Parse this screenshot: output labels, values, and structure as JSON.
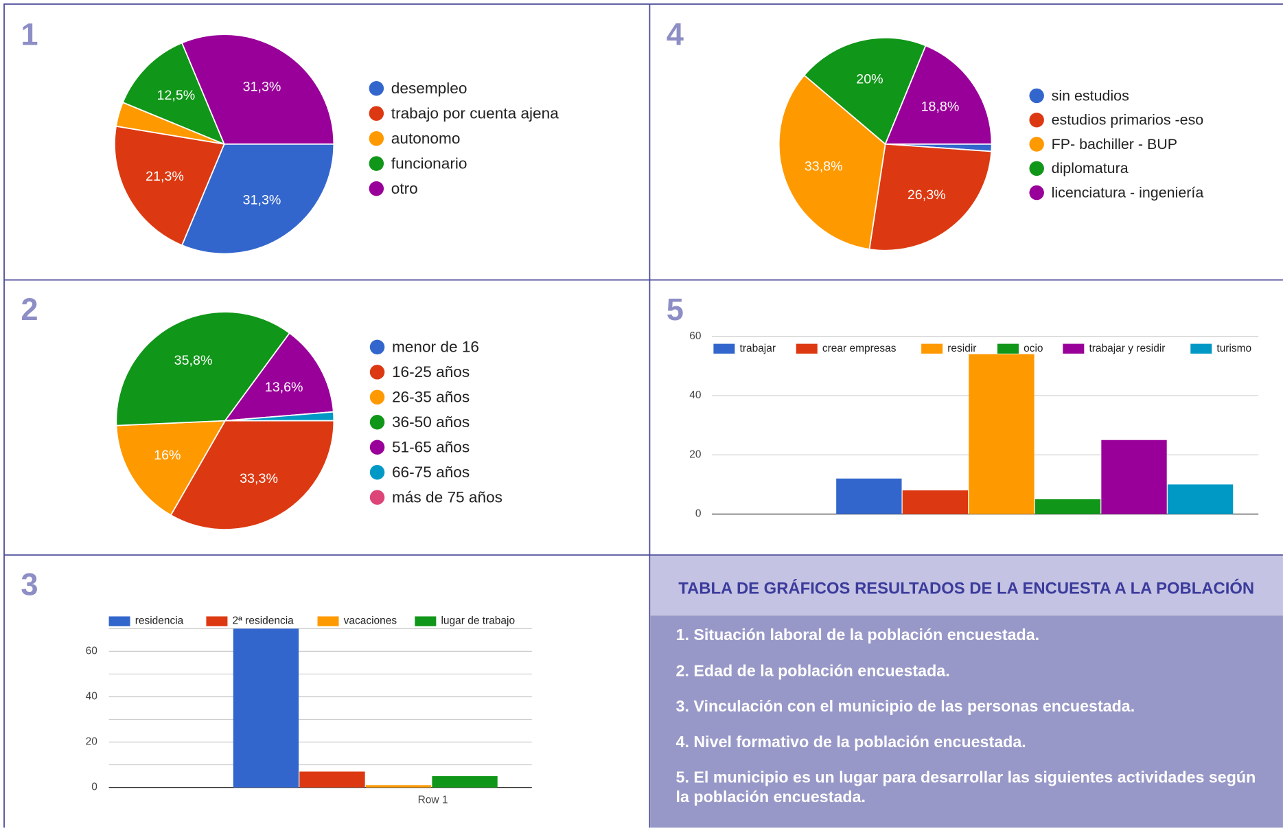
{
  "chart_data": [
    {
      "type": "pie",
      "number": "1",
      "categories": [
        "desempleo",
        "trabajo por cuenta ajena",
        "autonomo",
        "funcionario",
        "otro"
      ],
      "values": [
        31.3,
        21.3,
        3.6,
        12.5,
        31.3
      ],
      "value_labels": [
        "31,3%",
        "21,3%",
        null,
        "12,5%",
        "31,3%"
      ],
      "colors": [
        "#3366cc",
        "#dc3912",
        "#ff9900",
        "#109618",
        "#990099"
      ]
    },
    {
      "type": "pie",
      "number": "2",
      "categories": [
        "menor de 16",
        "16-25 años",
        "26-35 años",
        "36-50 años",
        "51-65 años",
        "66-75 años",
        "más de 75 años"
      ],
      "values": [
        0,
        33.3,
        16,
        35.8,
        13.6,
        1.3,
        0
      ],
      "value_labels": [
        null,
        "33,3%",
        "16%",
        "35,8%",
        "13,6%",
        null,
        null
      ],
      "colors": [
        "#3366cc",
        "#dc3912",
        "#ff9900",
        "#109618",
        "#990099",
        "#0099c6",
        "#dd4477"
      ]
    },
    {
      "type": "bar",
      "number": "3",
      "categories": [
        "Row 1"
      ],
      "series": [
        {
          "name": "residencia",
          "color": "#3366cc",
          "values": [
            70
          ]
        },
        {
          "name": "2ª residencia",
          "color": "#dc3912",
          "values": [
            7
          ]
        },
        {
          "name": "vacaciones",
          "color": "#ff9900",
          "values": [
            1
          ]
        },
        {
          "name": "lugar de trabajo",
          "color": "#109618",
          "values": [
            5
          ]
        }
      ],
      "ylim": [
        0,
        70
      ],
      "yticks": [
        0,
        20,
        40,
        60
      ],
      "minor_gridlines": [
        10,
        30,
        50,
        70
      ],
      "grid": true
    },
    {
      "type": "pie",
      "number": "4",
      "categories": [
        "sin estudios",
        "estudios primarios -eso",
        "FP- bachiller - BUP",
        "diplomatura",
        "licenciatura - ingeniería"
      ],
      "values": [
        1.1,
        26.3,
        33.8,
        20,
        18.8
      ],
      "value_labels": [
        null,
        "26,3%",
        "33,8%",
        "20%",
        "18,8%"
      ],
      "colors": [
        "#3366cc",
        "#dc3912",
        "#ff9900",
        "#109618",
        "#990099"
      ]
    },
    {
      "type": "bar",
      "number": "5",
      "categories": [
        null
      ],
      "series": [
        {
          "name": "trabajar",
          "color": "#3366cc",
          "values": [
            12
          ]
        },
        {
          "name": "crear empresas",
          "color": "#dc3912",
          "values": [
            8
          ]
        },
        {
          "name": "residir",
          "color": "#ff9900",
          "values": [
            54
          ]
        },
        {
          "name": "ocio",
          "color": "#109618",
          "values": [
            5
          ]
        },
        {
          "name": "trabajar y residir",
          "color": "#990099",
          "values": [
            25
          ]
        },
        {
          "name": "turismo",
          "color": "#0099c6",
          "values": [
            10
          ]
        }
      ],
      "ylim": [
        0,
        60
      ],
      "yticks": [
        0,
        20,
        40,
        60
      ],
      "grid": true
    }
  ],
  "panel": {
    "title": "TABLA DE GRÁFICOS RESULTADOS DE LA ENCUESTA A LA POBLACIÓN",
    "items": [
      "1. Situación laboral de la población encuestada.",
      "2. Edad de la población encuestada.",
      "3. Vinculación con el municipio de las personas encuestada.",
      "4. Nivel formativo de la población encuestada.",
      "5. El municipio es un lugar para desarrollar las siguientes actividades según la población encuestada."
    ]
  }
}
